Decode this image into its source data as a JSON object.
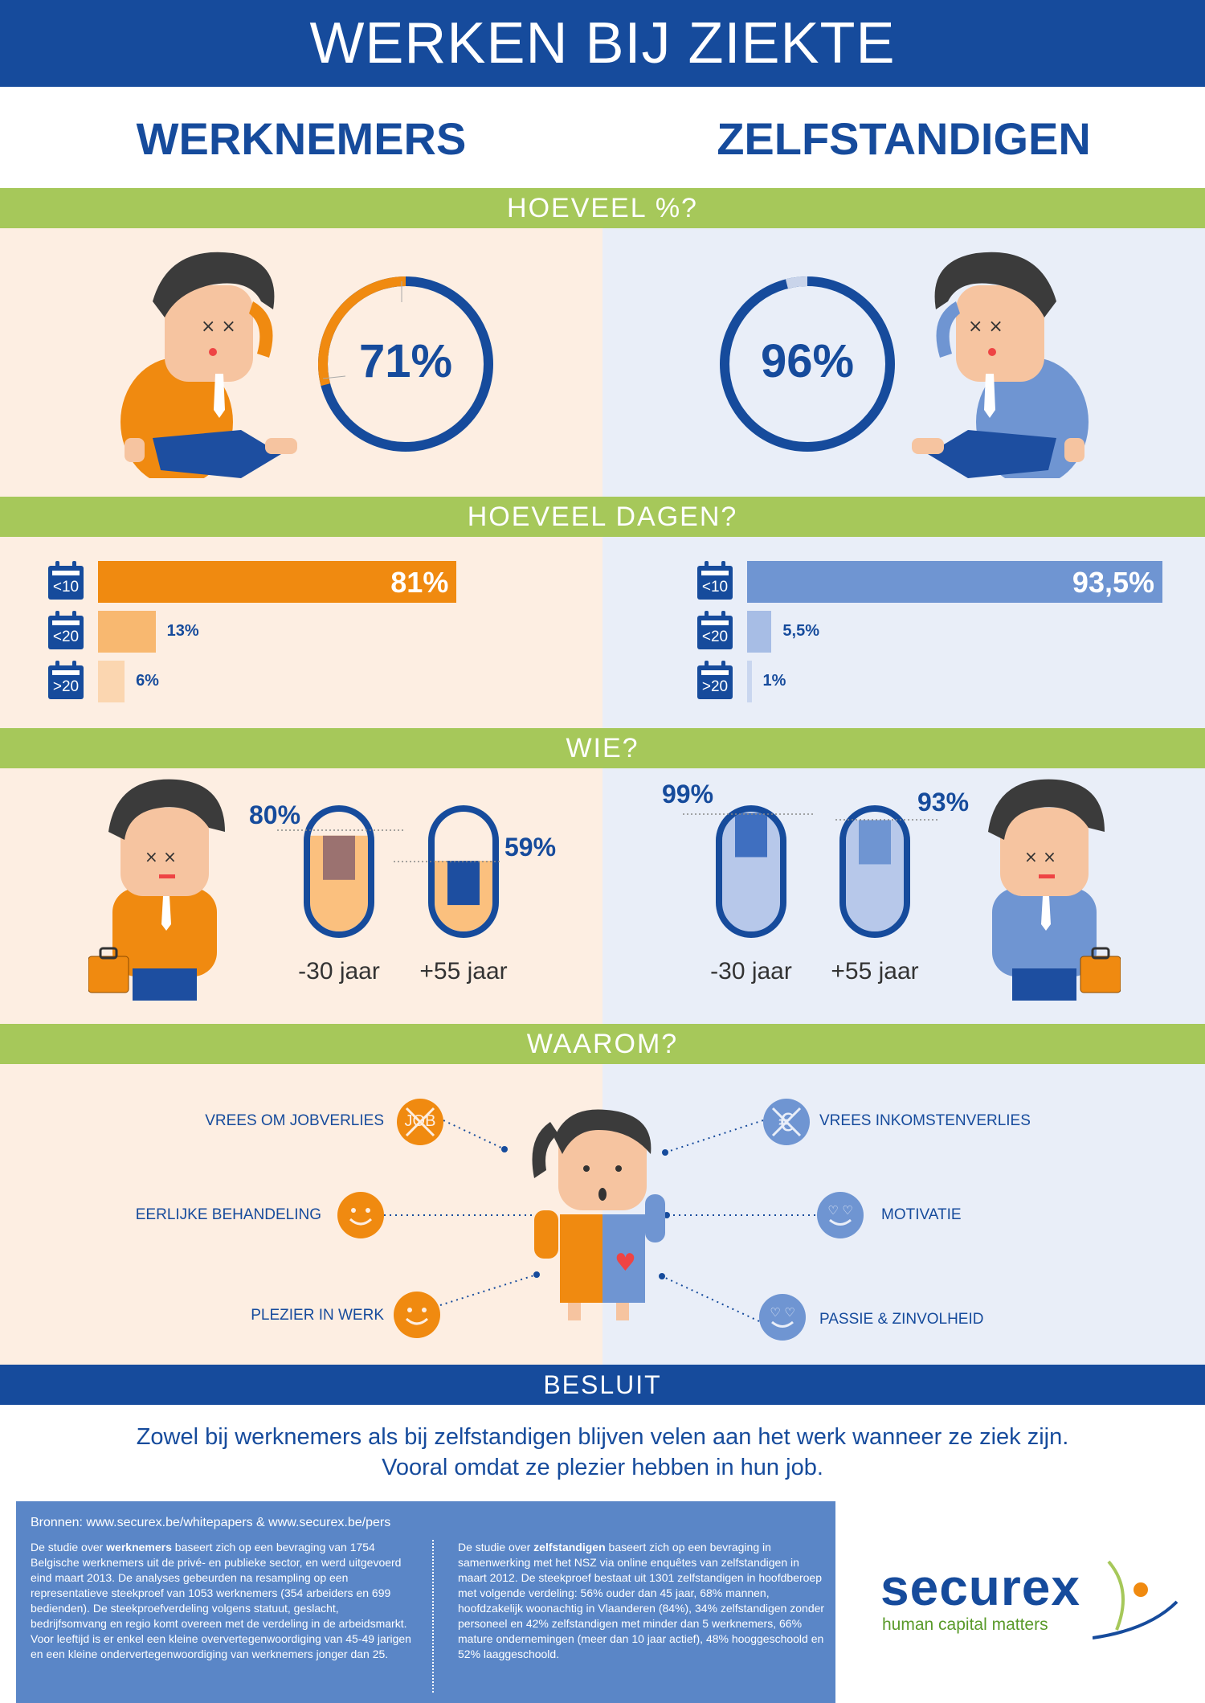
{
  "header": {
    "title": "WERKEN BIJ ZIEKTE"
  },
  "columns": {
    "left": "WERKNEMERS",
    "right": "ZELFSTANDIGEN"
  },
  "sections": {
    "percent": "HOEVEEL %?",
    "days": "HOEVEEL DAGEN?",
    "who": "WIE?",
    "why": "WAAROM?",
    "conclusion": "BESLUIT"
  },
  "percent": {
    "werknemers": {
      "label": "71%",
      "value": 71
    },
    "zelfstandigen": {
      "label": "96%",
      "value": 96
    }
  },
  "days": {
    "categories": [
      "<10",
      "<20",
      ">20"
    ],
    "werknemers": [
      {
        "cat": "<10",
        "label": "81%",
        "value": 81
      },
      {
        "cat": "<20",
        "label": "13%",
        "value": 13
      },
      {
        "cat": ">20",
        "label": "6%",
        "value": 6
      }
    ],
    "zelfstandigen": [
      {
        "cat": "<10",
        "label": "93,5%",
        "value": 93.5
      },
      {
        "cat": "<20",
        "label": "5,5%",
        "value": 5.5
      },
      {
        "cat": ">20",
        "label": "1%",
        "value": 1
      }
    ]
  },
  "who": {
    "werknemers": [
      {
        "label": "80%",
        "value": 80,
        "age": "-30 jaar"
      },
      {
        "label": "59%",
        "value": 59,
        "age": "+55 jaar"
      }
    ],
    "zelfstandigen": [
      {
        "label": "99%",
        "value": 99,
        "age": "-30 jaar"
      },
      {
        "label": "93%",
        "value": 93,
        "age": "+55 jaar"
      }
    ]
  },
  "why": {
    "werknemers": [
      {
        "label": "VREES OM JOBVERLIES",
        "icon": "job-crossed-icon",
        "icon_text": "JOB"
      },
      {
        "label": "EERLIJKE BEHANDELING",
        "icon": "smiley-icon"
      },
      {
        "label": "PLEZIER IN WERK",
        "icon": "smiley-icon"
      }
    ],
    "zelfstandigen": [
      {
        "label": "VREES INKOMSTENVERLIES",
        "icon": "euro-crossed-icon"
      },
      {
        "label": "MOTIVATIE",
        "icon": "heart-eyes-icon"
      },
      {
        "label": "PASSIE & ZINVOLHEID",
        "icon": "heart-eyes-icon"
      }
    ]
  },
  "conclusion": {
    "line1": "Zowel bij werknemers als bij zelfstandigen blijven velen aan het werk wanneer ze ziek zijn.",
    "line2": "Vooral omdat ze plezier hebben in hun job."
  },
  "sources": {
    "heading": "Bronnen: www.securex.be/whitepapers & www.securex.be/pers",
    "left_pre": "De studie over ",
    "left_bold": "werknemers",
    "left_post": " baseert zich op een bevraging van 1754 Belgische werknemers uit de privé- en publieke sector, en werd uitgevoerd eind maart 2013. De analyses gebeurden na resampling op een representatieve steekproef van 1053 werknemers (354 arbeiders en 699 bedienden). De steekproefverdeling volgens statuut, geslacht, bedrijfsomvang en regio komt overeen met de verdeling in de arbeidsmarkt. Voor leeftijd is er enkel een kleine oververtegenwoordiging van 45-49 jarigen en een kleine ondervertegenwoordiging van werknemers jonger dan 25.",
    "right_pre": "De studie over ",
    "right_bold": "zelfstandigen",
    "right_post": " baseert zich op een bevraging in samenwerking met het NSZ via online enquêtes van zelfstandigen in maart 2012. De steekproef bestaat uit 1301 zelfstandigen in hoofdberoep met volgende verdeling: 56% ouder dan 45 jaar, 68% mannen, hoofdzakelijk woonachtig in Vlaanderen (84%), 34% zelfstandigen zonder personeel en 42% zelfstandigen met minder dan 5 werknemers, 66% mature ondernemingen (meer dan 10 jaar actief), 48% hooggeschoold en 52% laaggeschoold."
  },
  "logo": {
    "name": "securex",
    "tagline": "human capital matters"
  },
  "colors": {
    "navy": "#164b9c",
    "green": "#a6c85a",
    "orange": "#f08a10",
    "blue": "#6f95d2",
    "peach_bg": "#fdeee2",
    "blue_bg": "#e9eef8"
  }
}
